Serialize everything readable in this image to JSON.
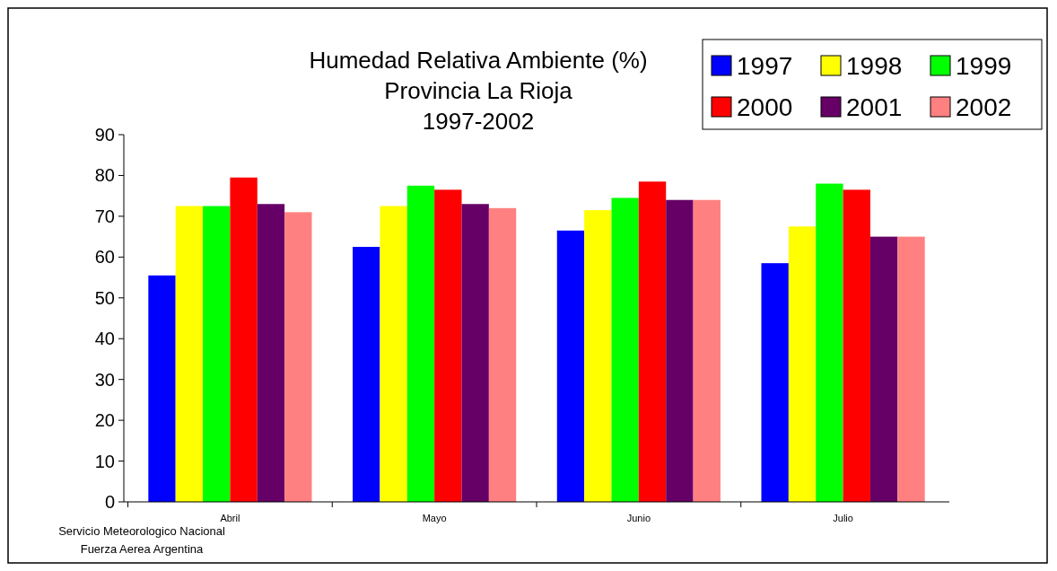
{
  "chart_data": {
    "type": "bar",
    "title": "Humedad Relativa Ambiente (%)\nProvincia La Rioja\n1997-2002",
    "categories": [
      "Abril",
      "Mayo",
      "Junio",
      "Julio"
    ],
    "series": [
      {
        "name": "1997",
        "color": "#0000ff",
        "values": [
          55.5,
          62.5,
          66.5,
          58.5
        ]
      },
      {
        "name": "1998",
        "color": "#ffff00",
        "values": [
          72.5,
          72.5,
          71.5,
          67.5
        ]
      },
      {
        "name": "1999",
        "color": "#00ff00",
        "values": [
          72.5,
          77.5,
          74.5,
          78
        ]
      },
      {
        "name": "2000",
        "color": "#ff0000",
        "values": [
          79.5,
          76.5,
          78.5,
          76.5
        ]
      },
      {
        "name": "2001",
        "color": "#660066",
        "values": [
          73,
          73,
          74,
          65
        ]
      },
      {
        "name": "2002",
        "color": "#ff8080",
        "values": [
          71,
          72,
          74,
          65
        ]
      }
    ],
    "ylim": [
      0,
      90
    ],
    "yticks": [
      0,
      10,
      20,
      30,
      40,
      50,
      60,
      70,
      80,
      90
    ],
    "grid": false,
    "legend": "top right",
    "annotations": [
      "Servicio Meteorologico Nacional",
      "Fuerza Aerea Argentina"
    ]
  }
}
